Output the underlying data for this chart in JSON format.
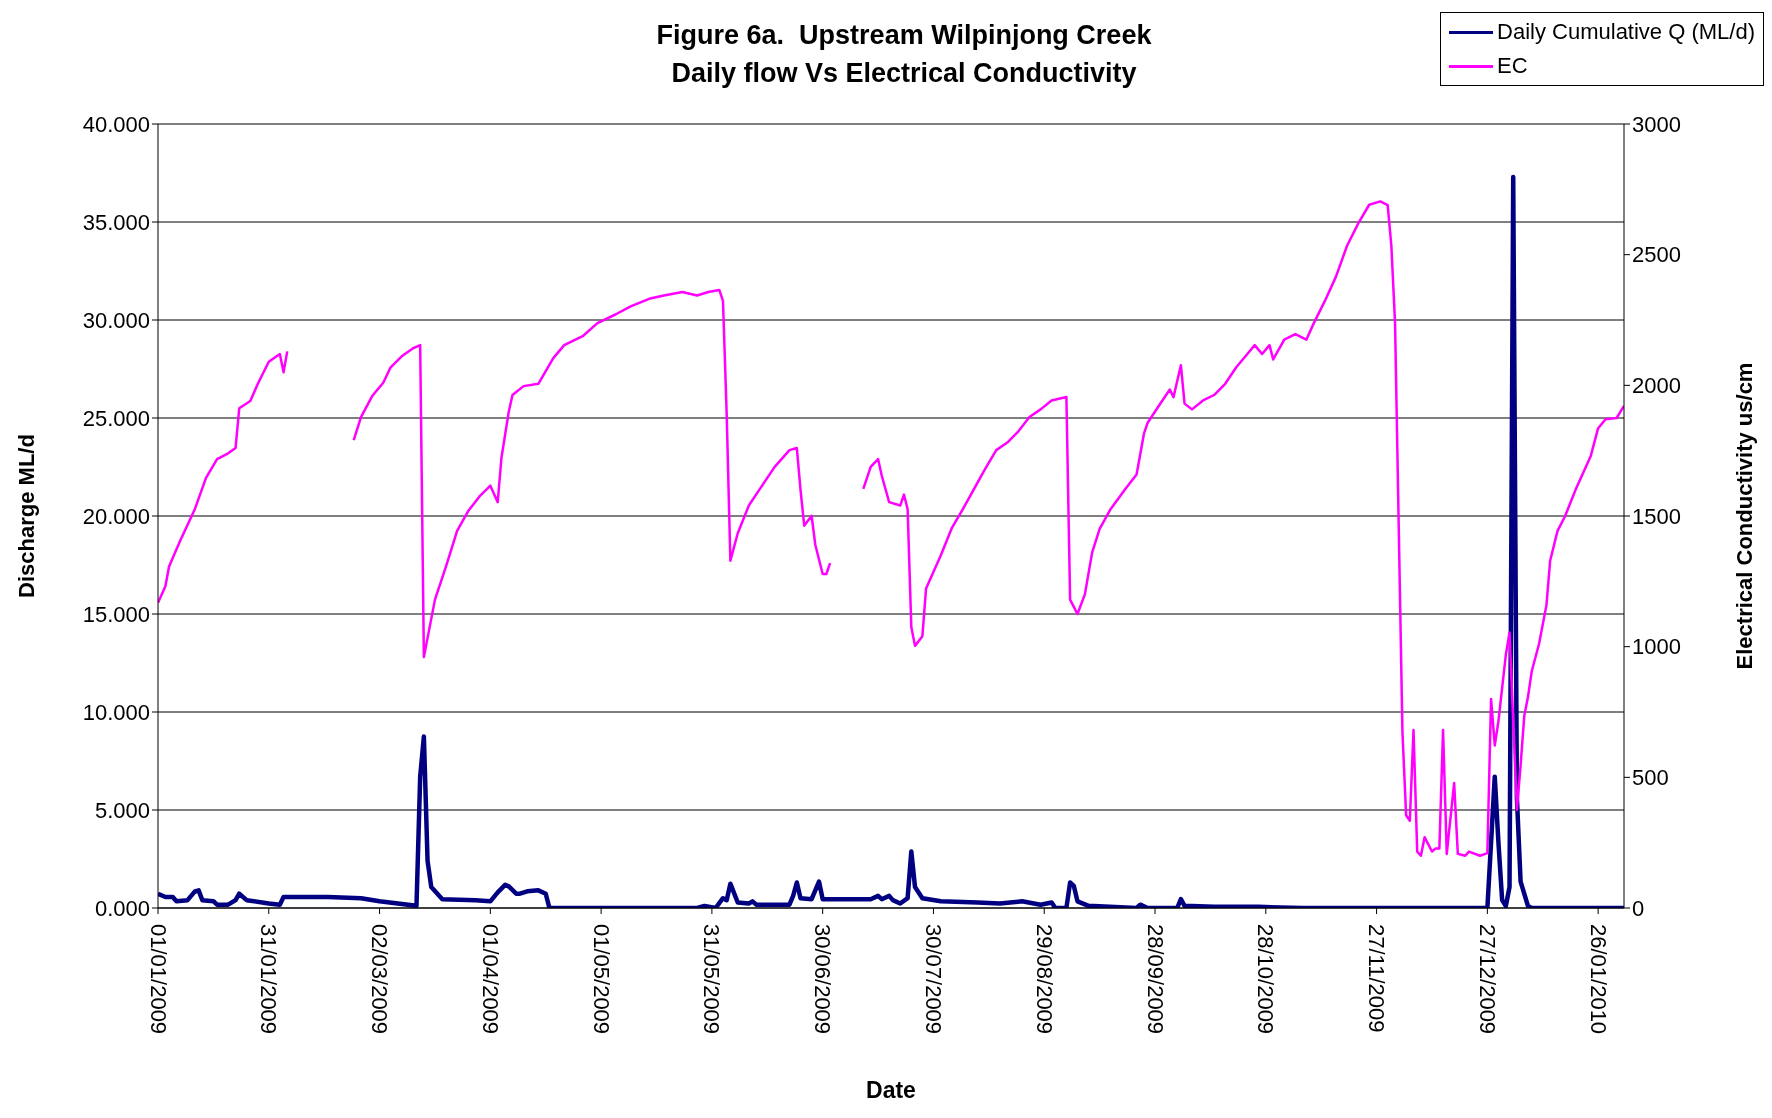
{
  "chart_data": {
    "type": "line",
    "title": "Figure 6a.  Upstream Wilpinjong Creek\nDaily flow Vs Electrical Conductivity",
    "xlabel": "Date",
    "ylabel": "Discharge ML/d",
    "y2label": "Electrical Conductivity us/cm",
    "xlim": [
      "2009-01-01",
      "2010-02-02"
    ],
    "xticks": [
      {
        "value": "2009-01-01",
        "label": "01/01/2009"
      },
      {
        "value": "2009-01-31",
        "label": "31/01/2009"
      },
      {
        "value": "2009-03-02",
        "label": "02/03/2009"
      },
      {
        "value": "2009-04-01",
        "label": "01/04/2009"
      },
      {
        "value": "2009-05-01",
        "label": "01/05/2009"
      },
      {
        "value": "2009-05-31",
        "label": "31/05/2009"
      },
      {
        "value": "2009-06-30",
        "label": "30/06/2009"
      },
      {
        "value": "2009-07-30",
        "label": "30/07/2009"
      },
      {
        "value": "2009-08-29",
        "label": "29/08/2009"
      },
      {
        "value": "2009-09-28",
        "label": "28/09/2009"
      },
      {
        "value": "2009-10-28",
        "label": "28/10/2009"
      },
      {
        "value": "2009-11-27",
        "label": "27/11/2009"
      },
      {
        "value": "2009-12-27",
        "label": "27/12/2009"
      },
      {
        "value": "2010-01-26",
        "label": "26/01/2010"
      }
    ],
    "ylim": [
      0,
      40
    ],
    "yticks": [
      {
        "value": 0,
        "label": "0.000"
      },
      {
        "value": 5,
        "label": "5.000"
      },
      {
        "value": 10,
        "label": "10.000"
      },
      {
        "value": 15,
        "label": "15.000"
      },
      {
        "value": 20,
        "label": "20.000"
      },
      {
        "value": 25,
        "label": "25.000"
      },
      {
        "value": 30,
        "label": "30.000"
      },
      {
        "value": 35,
        "label": "35.000"
      },
      {
        "value": 40,
        "label": "40.000"
      }
    ],
    "y2lim": [
      0,
      3000
    ],
    "y2ticks": [
      0,
      500,
      1000,
      1500,
      2000,
      2500,
      3000
    ],
    "grid": "y",
    "legend": "top right",
    "marker": "none",
    "line_style": "solid",
    "series": [
      {
        "name": "Daily Cumulative Q (ML/d)",
        "color": "#000080",
        "x": [
          "2009-01-01",
          "2009-01-03",
          "2009-01-05",
          "2009-01-06",
          "2009-01-09",
          "2009-01-11",
          "2009-01-12",
          "2009-01-13",
          "2009-01-16",
          "2009-01-17",
          "2009-01-20",
          "2009-01-22",
          "2009-01-23",
          "2009-01-25",
          "2009-01-31",
          "2009-02-03",
          "2009-02-04",
          "2009-02-16",
          "2009-02-25",
          "2009-03-02",
          "2009-03-12",
          "2009-03-13",
          "2009-03-14",
          "2009-03-15",
          "2009-03-16",
          "2009-03-19",
          "2009-03-28",
          "2009-04-01",
          "2009-04-03",
          "2009-04-05",
          "2009-04-06",
          "2009-04-08",
          "2009-04-09",
          "2009-04-11",
          "2009-04-14",
          "2009-04-16",
          "2009-04-17",
          "2009-05-27",
          "2009-05-29",
          "2009-06-01",
          "2009-06-03",
          "2009-06-04",
          "2009-06-05",
          "2009-06-07",
          "2009-06-10",
          "2009-06-11",
          "2009-06-12",
          "2009-06-21",
          "2009-06-22",
          "2009-06-23",
          "2009-06-24",
          "2009-06-27",
          "2009-06-29",
          "2009-06-30",
          "2009-07-13",
          "2009-07-15",
          "2009-07-16",
          "2009-07-18",
          "2009-07-19",
          "2009-07-21",
          "2009-07-23",
          "2009-07-24",
          "2009-07-25",
          "2009-07-27",
          "2009-08-01",
          "2009-08-11",
          "2009-08-17",
          "2009-08-23",
          "2009-08-28",
          "2009-08-31",
          "2009-09-01",
          "2009-09-04",
          "2009-09-05",
          "2009-09-06",
          "2009-09-07",
          "2009-09-10",
          "2009-09-23",
          "2009-09-24",
          "2009-09-26",
          "2009-10-04",
          "2009-10-05",
          "2009-10-06",
          "2009-10-14",
          "2009-10-26",
          "2009-11-07",
          "2009-12-27",
          "2009-12-28",
          "2009-12-29",
          "2009-12-30",
          "2009-12-31",
          "2010-01-01",
          "2010-01-02",
          "2010-01-03",
          "2010-01-04",
          "2010-01-05",
          "2010-01-07",
          "2010-01-08",
          "2010-02-02"
        ],
        "values": [
          0.73,
          0.56,
          0.56,
          0.34,
          0.4,
          0.85,
          0.9,
          0.4,
          0.35,
          0.17,
          0.17,
          0.4,
          0.73,
          0.4,
          0.23,
          0.17,
          0.56,
          0.56,
          0.5,
          0.34,
          0.11,
          6.7,
          8.75,
          2.4,
          1.07,
          0.45,
          0.4,
          0.34,
          0.8,
          1.18,
          1.1,
          0.73,
          0.73,
          0.85,
          0.9,
          0.73,
          0,
          0,
          0.1,
          0,
          0.5,
          0.4,
          1.24,
          0.28,
          0.23,
          0.34,
          0.17,
          0.17,
          0.62,
          1.3,
          0.5,
          0.45,
          1.35,
          0.45,
          0.45,
          0.62,
          0.45,
          0.62,
          0.4,
          0.23,
          0.5,
          2.88,
          1.07,
          0.5,
          0.34,
          0.28,
          0.23,
          0.34,
          0.17,
          0.28,
          0,
          0,
          1.3,
          1.13,
          0.34,
          0.11,
          0,
          0.17,
          0,
          0,
          0.45,
          0.11,
          0.06,
          0.06,
          0,
          0,
          3.33,
          6.7,
          3.33,
          0.4,
          0.1,
          1.07,
          37.3,
          5.6,
          1.35,
          0.1,
          0,
          0
        ]
      },
      {
        "name": "EC",
        "color": "#ff00ff",
        "axis": "y2",
        "x": [
          "2009-01-01",
          "2009-01-03",
          "2009-01-04",
          "2009-01-07",
          "2009-01-11",
          "2009-01-14",
          "2009-01-17",
          "2009-01-20",
          "2009-01-22",
          "2009-01-23",
          "2009-01-26",
          "2009-01-28",
          "2009-01-31",
          "2009-02-03",
          "2009-02-04",
          "2009-02-05",
          "2009-02-15",
          "2009-02-23",
          "2009-02-25",
          "2009-02-28",
          "2009-03-03",
          "2009-03-05",
          "2009-03-08",
          "2009-03-11",
          "2009-03-13",
          "2009-03-14",
          "2009-03-17",
          "2009-03-20",
          "2009-03-23",
          "2009-03-26",
          "2009-03-29",
          "2009-04-01",
          "2009-04-03",
          "2009-04-04",
          "2009-04-06",
          "2009-04-07",
          "2009-04-10",
          "2009-04-14",
          "2009-04-18",
          "2009-04-21",
          "2009-04-26",
          "2009-04-30",
          "2009-05-05",
          "2009-05-09",
          "2009-05-14",
          "2009-05-18",
          "2009-05-23",
          "2009-05-27",
          "2009-05-30",
          "2009-06-02",
          "2009-06-03",
          "2009-06-04",
          "2009-06-05",
          "2009-06-07",
          "2009-06-10",
          "2009-06-13",
          "2009-06-17",
          "2009-06-21",
          "2009-06-23",
          "2009-06-24",
          "2009-06-25",
          "2009-06-27",
          "2009-06-28",
          "2009-06-30",
          "2009-07-01",
          "2009-07-02",
          "2009-07-06",
          "2009-07-11",
          "2009-07-13",
          "2009-07-15",
          "2009-07-16",
          "2009-07-18",
          "2009-07-21",
          "2009-07-22",
          "2009-07-23",
          "2009-07-24",
          "2009-07-25",
          "2009-07-27",
          "2009-07-28",
          "2009-08-01",
          "2009-08-04",
          "2009-08-07",
          "2009-08-10",
          "2009-08-13",
          "2009-08-16",
          "2009-08-19",
          "2009-08-22",
          "2009-08-25",
          "2009-08-28",
          "2009-08-31",
          "2009-09-04",
          "2009-09-05",
          "2009-09-07",
          "2009-09-09",
          "2009-09-11",
          "2009-09-13",
          "2009-09-16",
          "2009-09-20",
          "2009-09-23",
          "2009-09-25",
          "2009-09-26",
          "2009-09-29",
          "2009-10-02",
          "2009-10-03",
          "2009-10-05",
          "2009-10-06",
          "2009-10-08",
          "2009-10-11",
          "2009-10-14",
          "2009-10-17",
          "2009-10-20",
          "2009-10-23",
          "2009-10-25",
          "2009-10-27",
          "2009-10-29",
          "2009-10-30",
          "2009-11-02",
          "2009-11-05",
          "2009-11-08",
          "2009-11-10",
          "2009-11-13",
          "2009-11-16",
          "2009-11-19",
          "2009-11-22",
          "2009-11-25",
          "2009-11-28",
          "2009-11-30",
          "2009-12-01",
          "2009-12-02",
          "2009-12-04",
          "2009-12-05",
          "2009-12-06",
          "2009-12-07",
          "2009-12-08",
          "2009-12-09",
          "2009-12-10",
          "2009-12-12",
          "2009-12-13",
          "2009-12-14",
          "2009-12-15",
          "2009-12-16",
          "2009-12-18",
          "2009-12-19",
          "2009-12-21",
          "2009-12-22",
          "2009-12-25",
          "2009-12-27",
          "2009-12-28",
          "2009-12-29",
          "2009-12-30",
          "2010-01-01",
          "2010-01-02",
          "2010-01-04",
          "2010-01-05",
          "2010-01-06",
          "2010-01-07",
          "2010-01-08",
          "2010-01-10",
          "2010-01-12",
          "2010-01-13",
          "2010-01-15",
          "2010-01-17",
          "2010-01-20",
          "2010-01-24",
          "2010-01-26",
          "2010-01-28",
          "2010-01-31",
          "2010-02-02"
        ],
        "values": [
          1168,
          1231,
          1307,
          1405,
          1527,
          1646,
          1718,
          1740,
          1760,
          1912,
          1940,
          2005,
          2090,
          2120,
          2050,
          2130,
          null,
          1790,
          1879,
          1959,
          2010,
          2069,
          2111,
          2141,
          2154,
          960,
          1180,
          1307,
          1443,
          1519,
          1574,
          1616,
          1553,
          1722,
          1900,
          1963,
          1997,
          2006,
          2103,
          2154,
          2188,
          2238,
          2272,
          2302,
          2331,
          2344,
          2357,
          2344,
          2357,
          2365,
          2323,
          1891,
          1329,
          1434,
          1540,
          1604,
          1688,
          1752,
          1760,
          1600,
          1463,
          1501,
          1390,
          1278,
          1278,
          1320,
          null,
          1604,
          1688,
          1718,
          1654,
          1553,
          1540,
          1582,
          1527,
          1075,
          1003,
          1040,
          1223,
          1350,
          1455,
          1527,
          1604,
          1680,
          1752,
          1781,
          1824,
          1879,
          1908,
          1942,
          1955,
          1180,
          1125,
          1200,
          1362,
          1451,
          1527,
          1604,
          1659,
          1815,
          1857,
          1921,
          1984,
          1955,
          2077,
          1930,
          1908,
          1942,
          1963,
          2006,
          2069,
          2120,
          2154,
          2120,
          2154,
          2099,
          2175,
          2196,
          2175,
          2238,
          2323,
          2416,
          2534,
          2619,
          2691,
          2704,
          2690,
          2534,
          2238,
          673,
          355,
          334,
          681,
          216,
          200,
          271,
          216,
          228,
          228,
          681,
          207,
          478,
          207,
          200,
          216,
          200,
          210,
          800,
          622,
          715,
          969,
          1054,
          376,
          546,
          736,
          808,
          905,
          1011,
          1159,
          1329,
          1443,
          1498,
          1604,
          1730,
          1836,
          1870,
          1875,
          1921
        ]
      }
    ]
  }
}
